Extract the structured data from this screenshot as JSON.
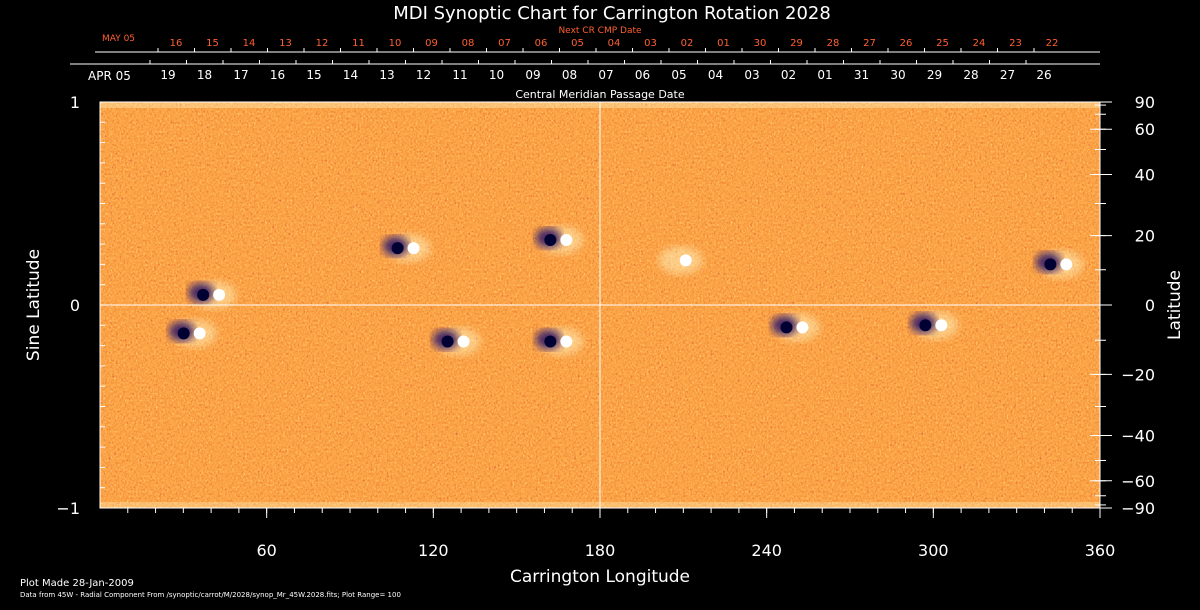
{
  "chart_data": {
    "type": "heatmap",
    "title": "MDI Synoptic Chart for Carrington Rotation 2028",
    "xlabel": "Carrington Longitude",
    "ylabel_left": "Sine Latitude",
    "ylabel_right": "Latitude",
    "xlim": [
      0,
      360
    ],
    "ylim": [
      -1,
      1
    ],
    "x_ticks": [
      60,
      120,
      180,
      240,
      300,
      360
    ],
    "x_minor_step": 10,
    "y_left_ticks": [
      {
        "value": 1,
        "label": "1"
      },
      {
        "value": 0,
        "label": "0"
      },
      {
        "value": -1,
        "label": "−1"
      }
    ],
    "y_right_ticks": [
      90,
      60,
      40,
      20,
      0,
      -20,
      -40,
      -60,
      -90
    ],
    "top_axis_label": "Central Meridian Passage Date",
    "top_axis_start_label": "APR 05",
    "top_axis_dates": [
      "19",
      "18",
      "17",
      "16",
      "15",
      "14",
      "13",
      "12",
      "11",
      "10",
      "09",
      "08",
      "07",
      "06",
      "05",
      "04",
      "03",
      "02",
      "01",
      "31",
      "30",
      "29",
      "28",
      "27",
      "26"
    ],
    "next_axis_title": "Next CR CMP Date",
    "next_axis_start_label": "MAY 05",
    "next_axis_dates": [
      "16",
      "15",
      "14",
      "13",
      "12",
      "11",
      "10",
      "09",
      "08",
      "07",
      "06",
      "05",
      "04",
      "03",
      "02",
      "01",
      "30",
      "29",
      "28",
      "27",
      "26",
      "25",
      "24",
      "23",
      "22"
    ],
    "colormap": [
      "#000033",
      "#2a1060",
      "#c02000",
      "#ff6020",
      "#ffffd0"
    ],
    "background_color": "#e55a18",
    "grid_lines": [
      {
        "axis": "x",
        "value": 180
      },
      {
        "axis": "y",
        "value": 0
      }
    ],
    "active_regions": [
      {
        "lon": 40,
        "sinlat": 0.05,
        "polarity": "bipolar"
      },
      {
        "lon": 33,
        "sinlat": -0.14,
        "polarity": "bipolar"
      },
      {
        "lon": 110,
        "sinlat": 0.28,
        "polarity": "bipolar"
      },
      {
        "lon": 128,
        "sinlat": -0.18,
        "polarity": "bipolar"
      },
      {
        "lon": 165,
        "sinlat": -0.18,
        "polarity": "bipolar"
      },
      {
        "lon": 165,
        "sinlat": 0.32,
        "polarity": "bipolar"
      },
      {
        "lon": 208,
        "sinlat": 0.22,
        "polarity": "positive"
      },
      {
        "lon": 250,
        "sinlat": -0.11,
        "polarity": "bipolar"
      },
      {
        "lon": 300,
        "sinlat": -0.1,
        "polarity": "bipolar"
      },
      {
        "lon": 345,
        "sinlat": 0.2,
        "polarity": "bipolar"
      }
    ]
  },
  "footer": {
    "plot_made": "Plot Made 28-Jan-2009",
    "data_from": "Data from 45W - Radial Component From /synoptic/carrot/M/2028/synop_Mr_45W.2028.fits; Plot Range= 100"
  }
}
